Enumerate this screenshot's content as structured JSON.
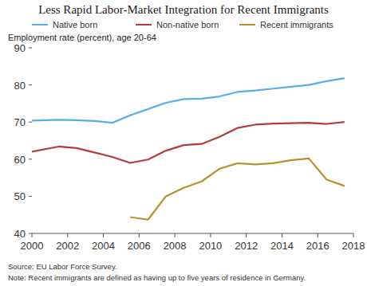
{
  "chart_data": {
    "type": "line",
    "title": "Less Rapid Labor-Market Integration for Recent Immigrants",
    "y_label": "Employment rate (percent), age 20-64",
    "annotations": [
      "Source: EU Labor Force Survey.",
      "Note: Recent immigrants are defined as having up to five years of residence in Germany."
    ],
    "x": [
      2000,
      2001.5,
      2002.5,
      2003.5,
      2004.5,
      2005.5,
      2006.5,
      2007.5,
      2008.5,
      2009.5,
      2010.5,
      2011.5,
      2012.5,
      2013.5,
      2014.5,
      2015.5,
      2016.5,
      2017.5
    ],
    "series": [
      {
        "name": "Native born",
        "color": "#59aee8",
        "values": [
          70.4,
          70.6,
          70.5,
          70.3,
          69.8,
          71.8,
          73.5,
          75.2,
          76.2,
          76.3,
          76.9,
          78.1,
          78.5,
          79.0,
          79.5,
          80.0,
          81.0,
          81.8
        ]
      },
      {
        "name": "Non-native born",
        "color": "#b33b3b",
        "values": [
          62.0,
          63.4,
          63.0,
          61.8,
          60.6,
          59.0,
          59.9,
          62.3,
          63.8,
          64.1,
          66.0,
          68.4,
          69.3,
          69.6,
          69.7,
          69.8,
          69.5,
          70.0
        ]
      },
      {
        "name": "Recent immigrants",
        "color": "#b8912e",
        "values": [
          null,
          null,
          null,
          null,
          null,
          44.4,
          43.7,
          50.0,
          52.3,
          54.0,
          57.4,
          58.9,
          58.6,
          58.9,
          59.7,
          60.2,
          54.5,
          52.8
        ]
      }
    ],
    "xlim": [
      2000,
      2018
    ],
    "xticks": [
      2000,
      2002,
      2004,
      2006,
      2008,
      2010,
      2012,
      2014,
      2016,
      2018
    ],
    "ylim": [
      40,
      90
    ],
    "yticks": [
      40,
      50,
      60,
      70,
      80,
      90
    ],
    "grid": false,
    "legend": "top"
  }
}
